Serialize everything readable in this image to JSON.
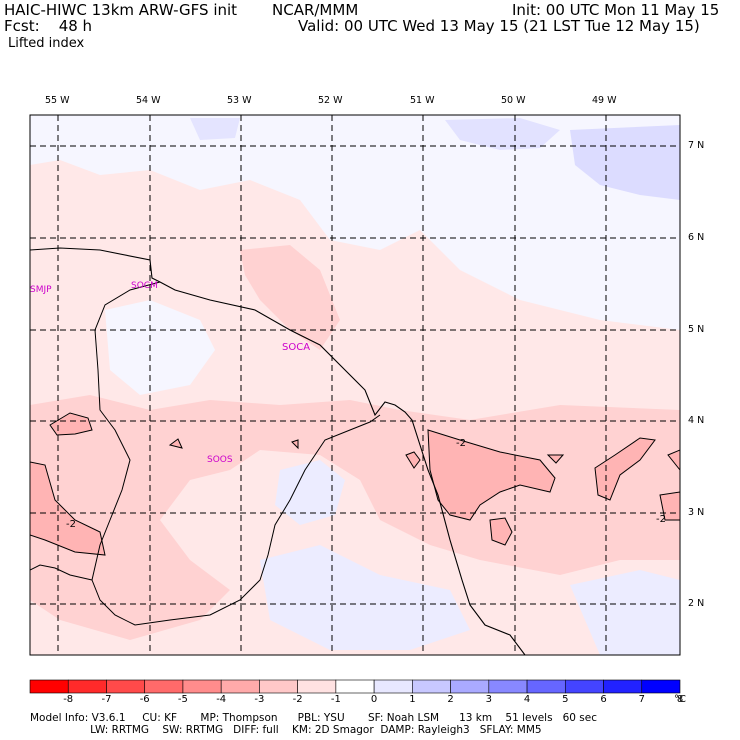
{
  "header": {
    "title_left": "HAIC-HIWC 13km ARW-GFS init",
    "title_center": "NCAR/MMM",
    "init": "Init: 00 UTC Mon 11 May 15",
    "fcst": "Fcst:    48 h",
    "valid": "Valid: 00 UTC Wed 13 May 15 (21 LST Tue 12 May 15)",
    "field": "Lifted index"
  },
  "map": {
    "lon_labels": [
      "55 W",
      "54 W",
      "53 W",
      "52 W",
      "51 W",
      "50 W",
      "49 W"
    ],
    "lat_labels": [
      "7 N",
      "6 N",
      "5 N",
      "4 N",
      "3 N",
      "2 N"
    ],
    "stations": [
      "SMJP",
      "SOCM",
      "SOCA",
      "SOOS"
    ],
    "contour_labels": [
      "-2",
      "-2",
      "-2"
    ]
  },
  "colorbar": {
    "ticks": [
      "-8",
      "-7",
      "-6",
      "-5",
      "-4",
      "-3",
      "-2",
      "-1",
      "0",
      "1",
      "2",
      "3",
      "4",
      "5",
      "6",
      "7",
      "8"
    ],
    "unit": "°C",
    "colors": [
      "#ff0000",
      "#ff2a2a",
      "#ff4a4a",
      "#ff6a6a",
      "#ff8c8c",
      "#ffaaaa",
      "#ffc8c8",
      "#ffe2e2",
      "#ffffff",
      "#e8e8ff",
      "#c8c8ff",
      "#aaaaff",
      "#8888ff",
      "#6666ff",
      "#4444ff",
      "#2222ff",
      "#0000ff"
    ]
  },
  "footer": {
    "line1": "Model Info: V3.6.1     CU: KF       MP: Thompson      PBL: YSU       SF: Noah LSM      13 km    51 levels   60 sec",
    "line2": "                  LW: RRTMG    SW: RRTMG   DIFF: full    KM: 2D Smagor  DAMP: Rayleigh3   SFLAY: MM5"
  }
}
